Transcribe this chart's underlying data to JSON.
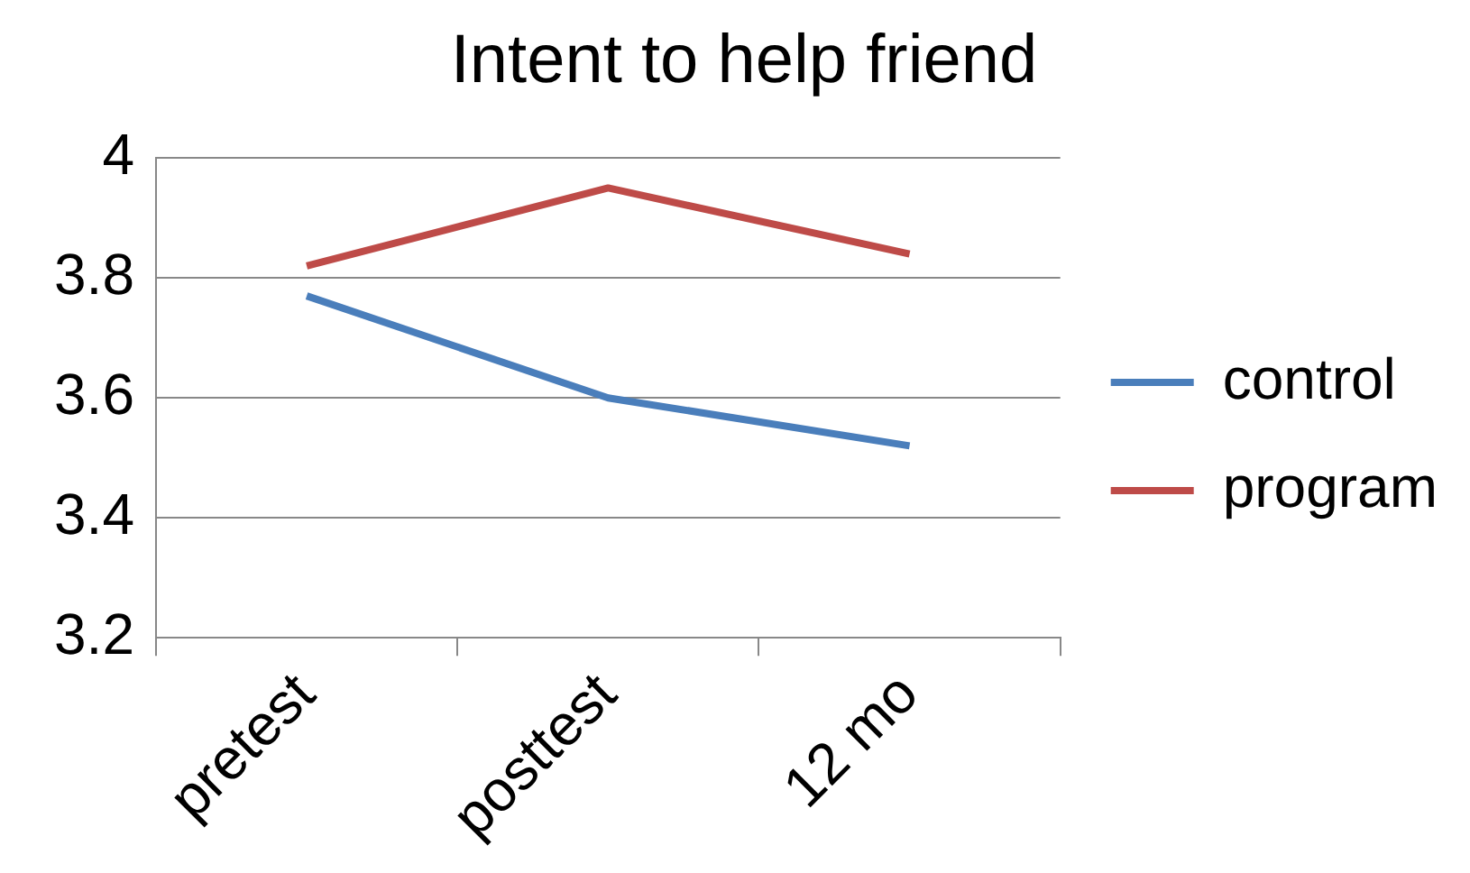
{
  "chart_data": {
    "type": "line",
    "title": "Intent to help friend",
    "categories": [
      "pretest",
      "posttest",
      "12 mo"
    ],
    "series": [
      {
        "name": "control",
        "color": "#4a7ebb",
        "values": [
          3.77,
          3.6,
          3.52
        ]
      },
      {
        "name": "program",
        "color": "#be4b48",
        "values": [
          3.82,
          3.95,
          3.84
        ]
      }
    ],
    "ylim": [
      3.2,
      4
    ],
    "yticks": [
      3.2,
      3.4,
      3.6,
      3.8,
      4
    ],
    "grid": "y",
    "legend": "right",
    "marker": "none",
    "line_style": "solid"
  }
}
